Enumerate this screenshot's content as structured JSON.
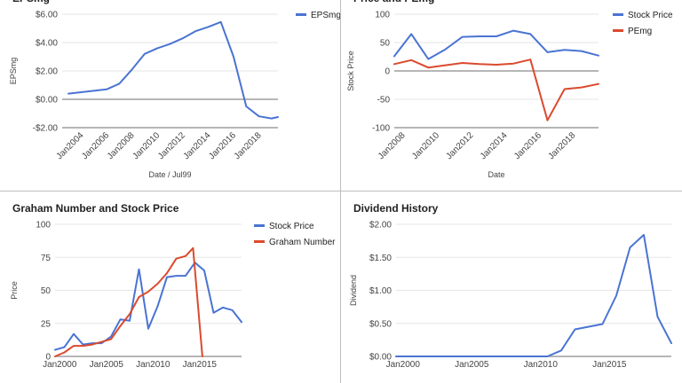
{
  "colors": {
    "blue": "#4a74d2",
    "red": "#db4a2e"
  },
  "chart_data": [
    {
      "id": "eps",
      "type": "line",
      "title": "EPSmg",
      "xlabel": "Date / Jul99",
      "ylabel": "EPSmg",
      "xlim": [
        2002.5,
        2019.5
      ],
      "ylim": [
        -2,
        6
      ],
      "yticks": [
        -2,
        0,
        2,
        4,
        6
      ],
      "ytick_labels": [
        "-$2.00",
        "$0.00",
        "$2.00",
        "$4.00",
        "$6.00"
      ],
      "xticks": [
        2004,
        2006,
        2008,
        2010,
        2012,
        2014,
        2016,
        2018
      ],
      "xtick_labels": [
        "Jan2004",
        "Jan2006",
        "Jan2008",
        "Jan2010",
        "Jan2012",
        "Jan2014",
        "Jan2016",
        "Jan2018"
      ],
      "xtick_rotate": true,
      "legend": "right",
      "series": [
        {
          "name": "EPSmg",
          "color": "#4a74d2",
          "x": [
            2003.0,
            2004.0,
            2005.0,
            2006.0,
            2007.0,
            2008.0,
            2009.0,
            2010.0,
            2011.0,
            2012.0,
            2013.0,
            2014.0,
            2015.0,
            2016.0,
            2017.0,
            2018.0,
            2019.0,
            2019.5
          ],
          "y": [
            0.4,
            0.5,
            0.6,
            0.7,
            1.1,
            2.1,
            3.2,
            3.6,
            3.9,
            4.3,
            4.8,
            5.1,
            5.45,
            3.0,
            -0.5,
            -1.2,
            -1.35,
            -1.25
          ]
        }
      ]
    },
    {
      "id": "price-pe",
      "type": "line",
      "title": "Price and PEmg",
      "xlabel": "Date",
      "ylabel": "Stock Price",
      "xlim": [
        2007.5,
        2019.5
      ],
      "ylim": [
        -100,
        100
      ],
      "yticks": [
        -100,
        -50,
        0,
        50,
        100
      ],
      "ytick_labels": [
        "-100",
        "-50",
        "0",
        "50",
        "100"
      ],
      "xticks": [
        2008,
        2010,
        2012,
        2014,
        2016,
        2018
      ],
      "xtick_labels": [
        "Jan2008",
        "Jan2010",
        "Jan2012",
        "Jan2014",
        "Jan2016",
        "Jan2018"
      ],
      "xtick_rotate": true,
      "legend": "right",
      "series": [
        {
          "name": "Stock Price",
          "color": "#4a74d2",
          "x": [
            2007.5,
            2008.5,
            2009.5,
            2010.5,
            2011.5,
            2012.5,
            2013.5,
            2014.5,
            2015.5,
            2016.5,
            2017.5,
            2018.5,
            2019.5
          ],
          "y": [
            26,
            65,
            21,
            38,
            60,
            61,
            61,
            71,
            65,
            33,
            37,
            35,
            27
          ]
        },
        {
          "name": "PEmg",
          "color": "#db4a2e",
          "x": [
            2007.5,
            2008.5,
            2009.5,
            2010.5,
            2011.5,
            2012.5,
            2013.5,
            2014.5,
            2015.5,
            2016.5,
            2017.5,
            2018.5,
            2019.5
          ],
          "y": [
            12,
            19,
            6,
            10,
            14,
            12,
            11,
            13,
            20,
            -87,
            -32,
            -29,
            -23
          ]
        }
      ]
    },
    {
      "id": "graham",
      "type": "line",
      "title": "Graham Number and Stock Price",
      "xlabel": "",
      "ylabel": "Price",
      "xlim": [
        1999.5,
        2019.5
      ],
      "ylim": [
        0,
        100
      ],
      "yticks": [
        0,
        25,
        50,
        75,
        100
      ],
      "ytick_labels": [
        "0",
        "25",
        "50",
        "75",
        "100"
      ],
      "xticks": [
        2000,
        2005,
        2010,
        2015
      ],
      "xtick_labels": [
        "Jan2000",
        "Jan2005",
        "Jan2010",
        "Jan2015"
      ],
      "xtick_rotate": false,
      "legend": "right",
      "series": [
        {
          "name": "Stock Price",
          "color": "#4a74d2",
          "x": [
            1999.5,
            2000.5,
            2001.5,
            2002.5,
            2003.5,
            2004.5,
            2005.5,
            2006.5,
            2007.5,
            2008.5,
            2009.5,
            2010.5,
            2011.5,
            2012.5,
            2013.5,
            2014.5,
            2015.5,
            2016.5,
            2017.5,
            2018.5,
            2019.5
          ],
          "y": [
            5,
            7,
            17,
            9,
            10,
            10,
            15,
            28,
            27,
            66,
            21,
            38,
            60,
            61,
            61,
            71,
            65,
            33,
            37,
            35,
            26
          ]
        },
        {
          "name": "Graham Number",
          "color": "#db4a2e",
          "x": [
            1999.5,
            2000.5,
            2001.5,
            2002.5,
            2003.5,
            2004.5,
            2005.5,
            2006.5,
            2007.5,
            2008.5,
            2009.5,
            2010.5,
            2011.5,
            2012.5,
            2013.5,
            2014.3,
            2015.3
          ],
          "y": [
            0,
            3,
            8,
            8,
            9,
            11,
            13,
            23,
            32,
            45,
            49,
            55,
            63,
            74,
            76,
            82,
            0
          ]
        }
      ]
    },
    {
      "id": "dividend",
      "type": "line",
      "title": "Dividend History",
      "xlabel": "",
      "ylabel": "Dividend",
      "xlim": [
        1999.5,
        2019.5
      ],
      "ylim": [
        0,
        2
      ],
      "yticks": [
        0,
        0.5,
        1,
        1.5,
        2
      ],
      "ytick_labels": [
        "$0.00",
        "$0.50",
        "$1.00",
        "$1.50",
        "$2.00"
      ],
      "xticks": [
        2000,
        2005,
        2010,
        2015
      ],
      "xtick_labels": [
        "Jan2000",
        "Jan2005",
        "Jan2010",
        "Jan2015"
      ],
      "xtick_rotate": false,
      "legend": "none",
      "series": [
        {
          "name": "",
          "color": "#4a74d2",
          "x": [
            1999.5,
            2001,
            2003,
            2005,
            2007,
            2009,
            2010.5,
            2011.5,
            2012.5,
            2013.5,
            2014.5,
            2015.5,
            2016.5,
            2017.5,
            2018.5,
            2019.5
          ],
          "y": [
            0,
            0,
            0,
            0,
            0,
            0,
            0,
            0.09,
            0.41,
            0.45,
            0.49,
            0.92,
            1.65,
            1.84,
            0.6,
            0.2
          ]
        }
      ]
    }
  ]
}
